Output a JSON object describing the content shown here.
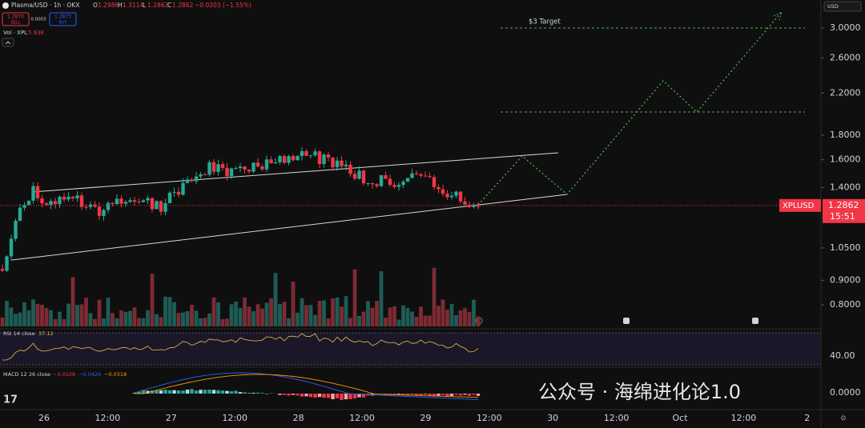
{
  "header": {
    "symbol": "Plasma/USD · 1h · OKX",
    "ohlc": [
      {
        "key": "O",
        "value": "1.2986"
      },
      {
        "key": "H",
        "value": "1.3114"
      },
      {
        "key": "L",
        "value": "1.2862"
      },
      {
        "key": "C",
        "value": "1.2862"
      }
    ],
    "change": "−0.0203 (−1.55%)"
  },
  "trade_buttons": {
    "sell_price": "1.2870",
    "sell_label": "SELL",
    "spread": "0.0003",
    "buy_price": "1.2873",
    "buy_label": "BUY"
  },
  "volume": {
    "label": "Vol · XPL",
    "value": "5.93K"
  },
  "currency": "USD",
  "price_axis": {
    "log": true,
    "ylim": [
      0.722,
      3.43
    ],
    "ticks": [
      {
        "value": 3,
        "label": "3.0000"
      },
      {
        "value": 2.6,
        "label": "2.6000"
      },
      {
        "value": 2.2,
        "label": "2.2000"
      },
      {
        "value": 1.8,
        "label": "1.8000"
      },
      {
        "value": 1.6,
        "label": "1.6000"
      },
      {
        "value": 1.4,
        "label": "1.4000"
      },
      {
        "value": 1.05,
        "label": "1.0500"
      },
      {
        "value": 0.9,
        "label": "0.9000"
      },
      {
        "value": 0.8,
        "label": "0.8000"
      }
    ]
  },
  "last_price": {
    "symbol": "XPLUSD",
    "value": 1.2862,
    "label": "1.2862",
    "countdown": "15:51"
  },
  "annotation": "$3 Target",
  "rsi": {
    "label": "RSI 14 close",
    "value": "37.12",
    "level": "40.00"
  },
  "macd": {
    "label": "MACD 12 26 close",
    "values": [
      "−0.0108",
      "−0.0426",
      "−0.0318"
    ],
    "level": "0.0000"
  },
  "time_axis": [
    "26",
    "12:00",
    "27",
    "12:00",
    "28",
    "12:00",
    "29",
    "12:00",
    "30",
    "12:00",
    "Oct",
    "12:00",
    "2"
  ],
  "watermark": "公众号 · 海绵进化论1.0"
}
